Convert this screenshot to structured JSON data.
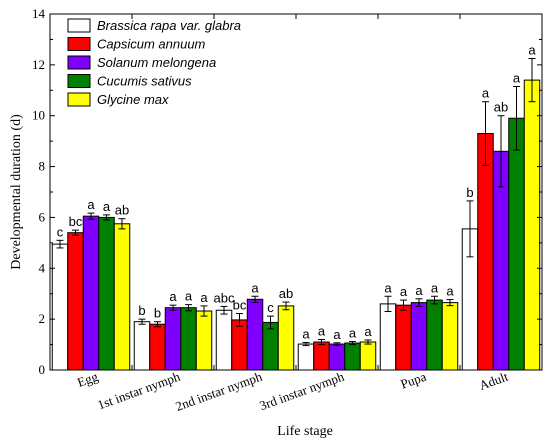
{
  "chart_data": {
    "type": "bar",
    "xlabel": "Life stage",
    "ylabel": "Developmental duration (d)",
    "ylim": [
      0,
      14
    ],
    "yticks": [
      0,
      2,
      4,
      6,
      8,
      10,
      12,
      14
    ],
    "legend_position": "top-left",
    "categories": [
      "Egg",
      "1st instar nymph",
      "2nd instar nymph",
      "3rd instar nymph",
      "Pupa",
      "Adult"
    ],
    "series": [
      {
        "name": "Brassica rapa var. glabra",
        "color": "#ffffff",
        "values": [
          4.95,
          1.9,
          2.35,
          1.02,
          2.6,
          5.55
        ],
        "errors": [
          0.15,
          0.1,
          0.15,
          0.06,
          0.3,
          1.1
        ],
        "letters": [
          "c",
          "b",
          "abc",
          "a",
          "a",
          "b"
        ]
      },
      {
        "name": "Capsicum annuum",
        "color": "#ff0000",
        "values": [
          5.4,
          1.8,
          1.97,
          1.1,
          2.55,
          9.3
        ],
        "errors": [
          0.1,
          0.1,
          0.25,
          0.1,
          0.2,
          1.25
        ],
        "letters": [
          "bc",
          "b",
          "bc",
          "a",
          "a",
          "a"
        ]
      },
      {
        "name": "Solanum melongena",
        "color": "#8000ff",
        "values": [
          6.05,
          2.45,
          2.78,
          1.02,
          2.65,
          8.6
        ],
        "errors": [
          0.12,
          0.1,
          0.12,
          0.05,
          0.15,
          1.4
        ],
        "letters": [
          "a",
          "a",
          "a",
          "a",
          "a",
          "ab"
        ]
      },
      {
        "name": "Cucumis sativus",
        "color": "#008000",
        "values": [
          6.0,
          2.45,
          1.87,
          1.06,
          2.75,
          9.9
        ],
        "errors": [
          0.1,
          0.12,
          0.25,
          0.06,
          0.15,
          1.25
        ],
        "letters": [
          "a",
          "a",
          "c",
          "a",
          "a",
          "a"
        ]
      },
      {
        "name": "Glycine max",
        "color": "#ffff00",
        "values": [
          5.75,
          2.32,
          2.52,
          1.1,
          2.65,
          11.4
        ],
        "errors": [
          0.2,
          0.2,
          0.15,
          0.08,
          0.12,
          0.85
        ],
        "letters": [
          "ab",
          "a",
          "ab",
          "a",
          "a",
          "a"
        ]
      }
    ]
  }
}
